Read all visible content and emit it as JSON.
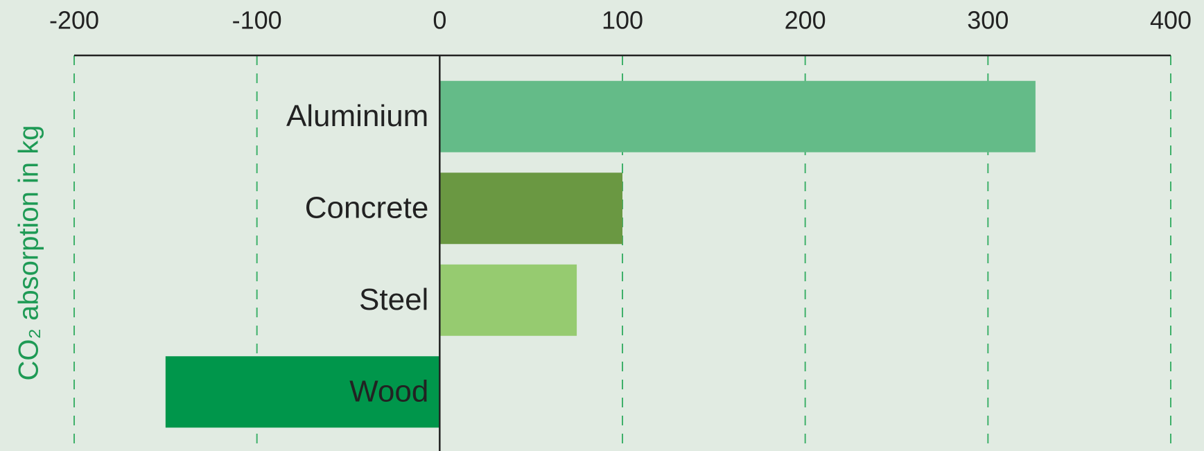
{
  "chart_data": {
    "type": "barh",
    "y_label": "CO₂ absorption in kg",
    "categories": [
      "Aluminium",
      "Concrete",
      "Steel",
      "Wood"
    ],
    "values": [
      326,
      100,
      75,
      -150
    ],
    "colors": [
      "#64bb88",
      "#6a9842",
      "#96cb70",
      "#00964b"
    ],
    "xlim": [
      -200,
      400
    ],
    "xticks": [
      -200,
      -100,
      0,
      100,
      200,
      300,
      400
    ],
    "grid": true
  }
}
